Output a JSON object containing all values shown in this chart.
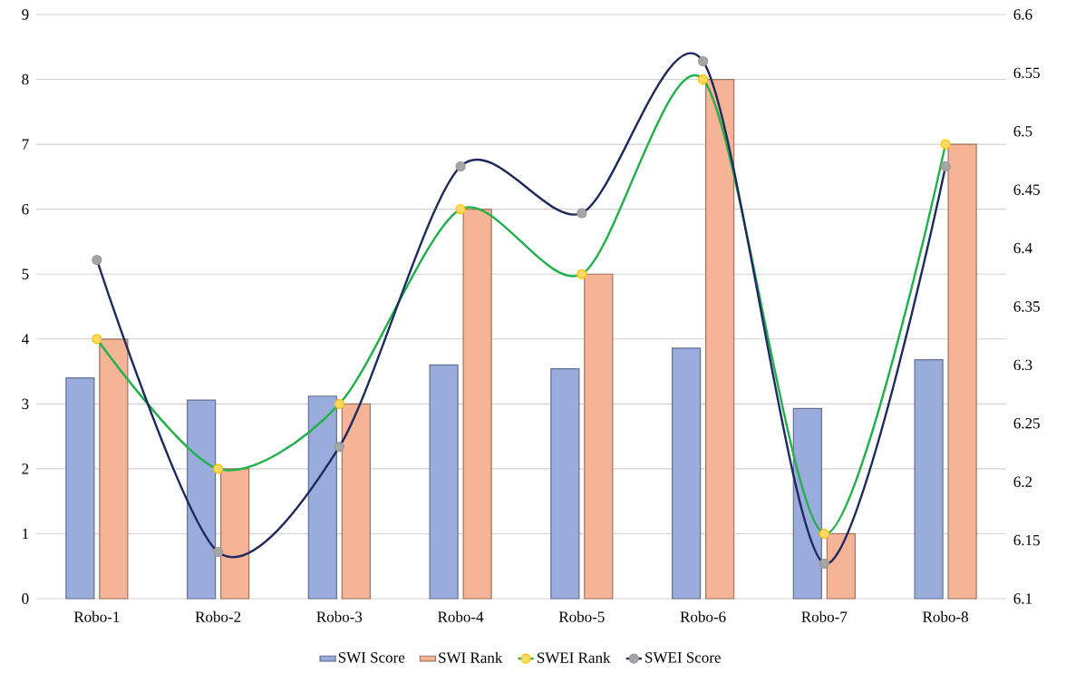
{
  "chart_data": {
    "type": "bar",
    "categories": [
      "Robo-1",
      "Robo-2",
      "Robo-3",
      "Robo-4",
      "Robo-5",
      "Robo-6",
      "Robo-7",
      "Robo-8"
    ],
    "series": [
      {
        "name": "SWI Score",
        "color": "#9aacdc",
        "values": [
          3.4,
          3.06,
          3.12,
          3.6,
          3.54,
          3.86,
          2.93,
          3.68
        ]
      },
      {
        "name": "SWI Rank",
        "color": "#f5b496",
        "values": [
          4,
          2,
          3,
          6,
          5,
          8,
          1,
          7
        ]
      },
      {
        "name": "SWEI Rank",
        "type": "line",
        "color": "#21b04b",
        "marker": "circle",
        "values": [
          4,
          2,
          3,
          6,
          5,
          8,
          1,
          7
        ]
      },
      {
        "name": "SWEI Score",
        "type": "line",
        "color": "#1f2a5e",
        "marker": "circle",
        "axis": "y2",
        "values": [
          6.39,
          6.14,
          6.23,
          6.47,
          6.43,
          6.56,
          6.13,
          6.47
        ]
      }
    ],
    "ylim": [
      0,
      9
    ],
    "yticks": [
      0,
      1,
      2,
      3,
      4,
      5,
      6,
      7,
      8,
      9
    ],
    "y2lim": [
      6.1,
      6.6
    ],
    "y2ticks": [
      6.1,
      6.15,
      6.2,
      6.25,
      6.3,
      6.35,
      6.4,
      6.45,
      6.5,
      6.55,
      6.6
    ],
    "grid": "y",
    "legend": "bottom"
  }
}
